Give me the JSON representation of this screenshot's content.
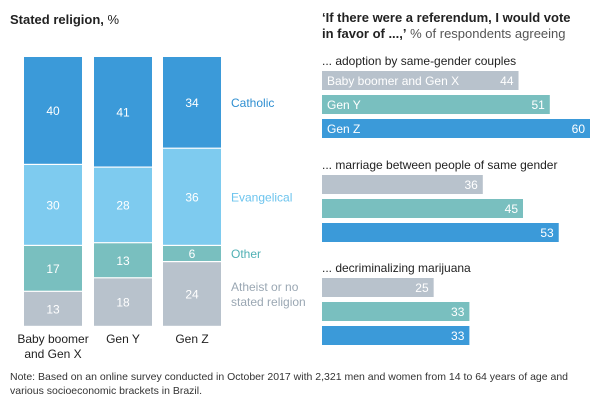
{
  "colors": {
    "catholic": "#3b9ad9",
    "evangelical": "#7ecbef",
    "other": "#79bfbf",
    "atheist": "#b8c2cc",
    "label_catholic": "#2f8fd1",
    "label_evangelical": "#6cc4ee",
    "label_other": "#4fb0b4",
    "label_atheist": "#9aa7b3",
    "gray_bar": "#b8c2cc",
    "teal_bar": "#79bfbf",
    "blue_bar": "#3b9ad9"
  },
  "chart_data": [
    {
      "type": "bar",
      "stacked": true,
      "title": "Stated religion,",
      "title_unit": "%",
      "categories": [
        "Baby boomer and Gen X",
        "Gen Y",
        "Gen Z"
      ],
      "category_lines": [
        [
          "Baby boomer",
          "and Gen X"
        ],
        [
          "Gen Y"
        ],
        [
          "Gen Z"
        ]
      ],
      "series": [
        {
          "name": "Atheist or no stated religion",
          "name_lines": [
            "Atheist or no",
            "stated religion"
          ],
          "key": "atheist",
          "values": [
            13,
            18,
            24
          ]
        },
        {
          "name": "Other",
          "name_lines": [
            "Other"
          ],
          "key": "other",
          "values": [
            17,
            13,
            6
          ]
        },
        {
          "name": "Evangelical",
          "name_lines": [
            "Evangelical"
          ],
          "key": "evangelical",
          "values": [
            30,
            28,
            36
          ]
        },
        {
          "name": "Catholic",
          "name_lines": [
            "Catholic"
          ],
          "key": "catholic",
          "values": [
            40,
            41,
            34
          ]
        }
      ],
      "legend_placement": "right"
    },
    {
      "type": "bar",
      "orientation": "horizontal",
      "title_lines": [
        "‘If there were a referendum, I would vote",
        "in favor of ...,’"
      ],
      "title_unit": "% of respondents agreeing",
      "groups": [
        {
          "label": "... adoption by same-gender couples",
          "bars": [
            {
              "label": "Baby boomer and Gen X",
              "key": "gray_bar",
              "value": 44
            },
            {
              "label": "Gen Y",
              "key": "teal_bar",
              "value": 51
            },
            {
              "label": "Gen Z",
              "key": "blue_bar",
              "value": 60
            }
          ]
        },
        {
          "label": "... marriage between people of same gender",
          "bars": [
            {
              "label": "",
              "key": "gray_bar",
              "value": 36
            },
            {
              "label": "",
              "key": "teal_bar",
              "value": 45
            },
            {
              "label": "",
              "key": "blue_bar",
              "value": 53
            }
          ]
        },
        {
          "label": "... decriminalizing marijuana",
          "bars": [
            {
              "label": "",
              "key": "gray_bar",
              "value": 25
            },
            {
              "label": "",
              "key": "teal_bar",
              "value": 33
            },
            {
              "label": "",
              "key": "blue_bar",
              "value": 33
            }
          ]
        }
      ]
    }
  ],
  "note": "Note: Based on an online survey conducted in October 2017 with 2,321 men and women from 14 to 64 years of age and various socioeconomic brackets in Brazil."
}
